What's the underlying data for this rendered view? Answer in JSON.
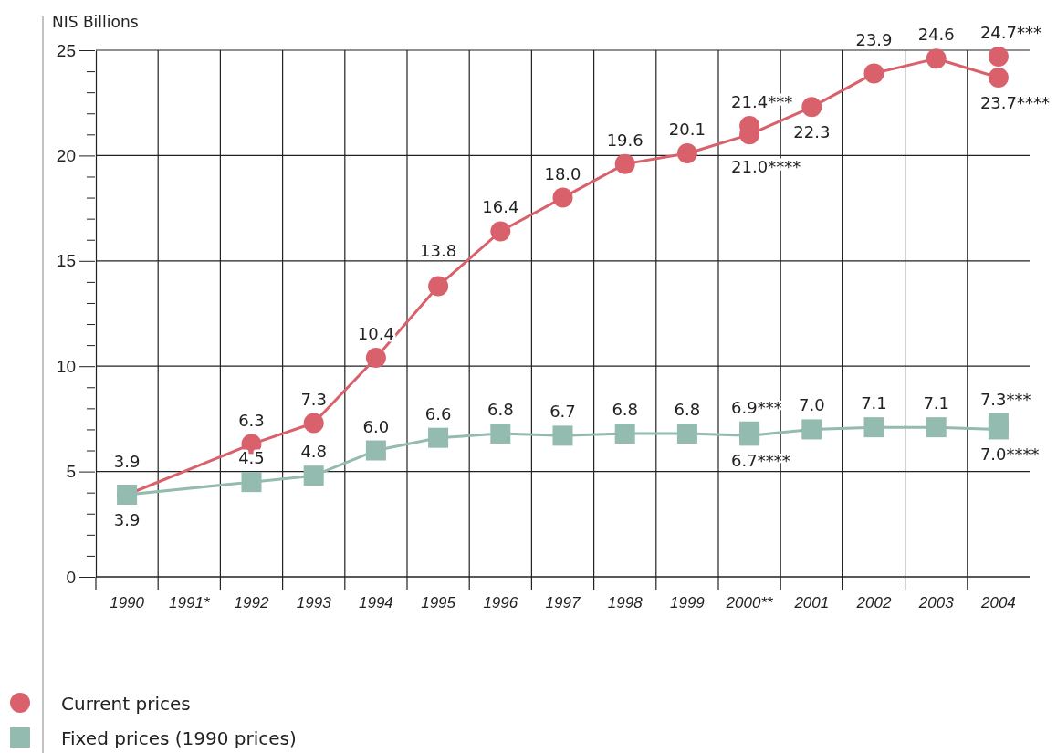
{
  "chart_data": {
    "type": "line",
    "ylabel": "NIS Billions",
    "categories": [
      "1990",
      "1991*",
      "1992",
      "1993",
      "1994",
      "1995",
      "1996",
      "1997",
      "1998",
      "1999",
      "2000**",
      "2001",
      "2002",
      "2003",
      "2004"
    ],
    "series": [
      {
        "name": "Current prices",
        "marker": "circle",
        "color": "#d9616b",
        "values": [
          3.9,
          null,
          6.3,
          7.3,
          10.4,
          13.8,
          16.4,
          18.0,
          19.6,
          20.1,
          21.0,
          22.3,
          23.9,
          24.6,
          23.7
        ],
        "value_labels": [
          "3.9",
          null,
          "6.3",
          "7.3",
          "10.4",
          "13.8",
          "16.4",
          "18.0",
          "19.6",
          "20.1",
          "21.0****",
          "22.3",
          "23.9",
          "24.6",
          "23.7****"
        ]
      },
      {
        "name": "Fixed prices (1990 prices)",
        "marker": "square",
        "color": "#93bbb0",
        "values": [
          3.9,
          null,
          4.5,
          4.8,
          6.0,
          6.6,
          6.8,
          6.7,
          6.8,
          6.8,
          6.7,
          7.0,
          7.1,
          7.1,
          7.0
        ],
        "value_labels": [
          "3.9",
          null,
          "4.5",
          "4.8",
          "6.0",
          "6.6",
          "6.8",
          "6.7",
          "6.8",
          "6.8",
          "6.7****",
          "7.0",
          "7.1",
          "7.1",
          "7.0****"
        ]
      },
      {
        "type": "scatter",
        "marker": "circle",
        "color": "#d9616b",
        "values": [
          null,
          null,
          null,
          null,
          null,
          null,
          null,
          null,
          null,
          null,
          21.4,
          null,
          null,
          null,
          24.7
        ],
        "value_labels": [
          null,
          null,
          null,
          null,
          null,
          null,
          null,
          null,
          null,
          null,
          "21.4***",
          null,
          null,
          null,
          "24.7***"
        ]
      },
      {
        "type": "scatter",
        "marker": "square",
        "color": "#93bbb0",
        "values": [
          null,
          null,
          null,
          null,
          null,
          null,
          null,
          null,
          null,
          null,
          6.9,
          null,
          null,
          null,
          7.3
        ],
        "value_labels": [
          null,
          null,
          null,
          null,
          null,
          null,
          null,
          null,
          null,
          null,
          "6.9***",
          null,
          null,
          null,
          "7.3***"
        ]
      }
    ],
    "ylim": [
      0,
      25
    ],
    "yticks": [
      0,
      {
        "value": 1,
        "label": null
      },
      {
        "value": 2,
        "label": null
      },
      {
        "value": 3,
        "label": null
      },
      {
        "value": 4,
        "label": null
      },
      5,
      {
        "value": 6,
        "label": null
      },
      {
        "value": 7,
        "label": null
      },
      {
        "value": 8,
        "label": null
      },
      {
        "value": 9,
        "label": null
      },
      10,
      {
        "value": 11,
        "label": null
      },
      {
        "value": 12,
        "label": null
      },
      {
        "value": 13,
        "label": null
      },
      {
        "value": 14,
        "label": null
      },
      15,
      {
        "value": 16,
        "label": null
      },
      {
        "value": 17,
        "label": null
      },
      {
        "value": 18,
        "label": null
      },
      {
        "value": 19,
        "label": null
      },
      20,
      {
        "value": 21,
        "label": null
      },
      {
        "value": 22,
        "label": null
      },
      {
        "value": 23,
        "label": null
      },
      {
        "value": 24,
        "label": null
      },
      25
    ],
    "grid": true,
    "legend": "bottom left",
    "line_style": "solid"
  }
}
